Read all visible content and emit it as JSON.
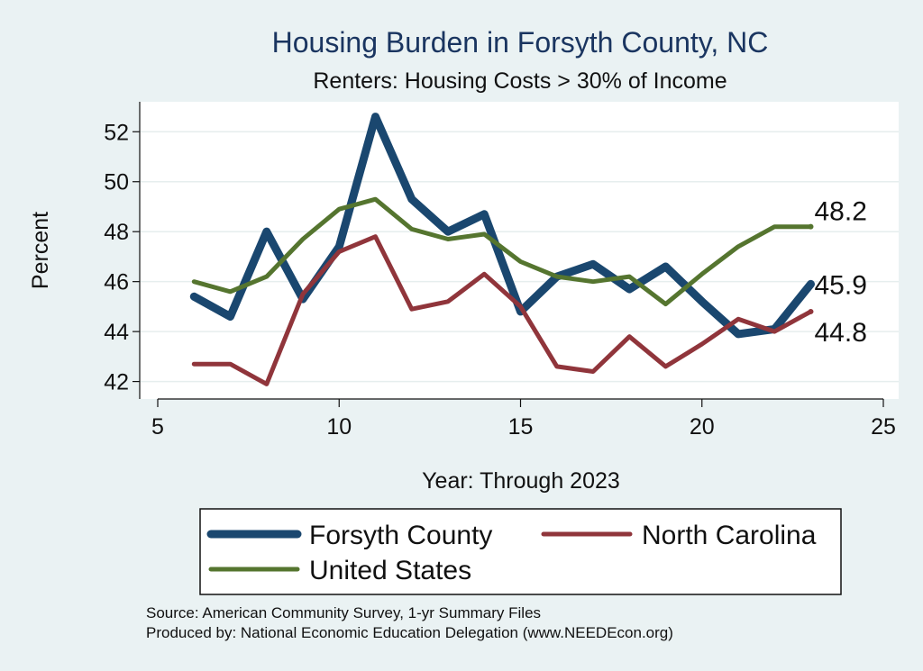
{
  "chart_data": {
    "type": "line",
    "title": "Housing Burden in Forsyth County, NC",
    "subtitle": "Renters: Housing Costs > 30% of Income",
    "xlabel": "Year: Through 2023",
    "ylabel": "Percent",
    "xlim": [
      5,
      25
    ],
    "ylim": [
      41.3,
      53.2
    ],
    "x_ticks": [
      5,
      10,
      15,
      20,
      25
    ],
    "y_ticks": [
      42,
      44,
      46,
      48,
      50,
      52
    ],
    "grid": true,
    "legend_position": "bottom",
    "series": [
      {
        "name": "Forsyth County",
        "color": "#1a476f",
        "x": [
          6,
          7,
          8,
          9,
          10,
          11,
          12,
          13,
          14,
          15,
          16,
          17,
          18,
          19,
          20,
          21,
          22,
          23
        ],
        "values": [
          45.4,
          44.6,
          48.0,
          45.3,
          47.4,
          52.6,
          49.3,
          48.0,
          48.7,
          44.8,
          46.2,
          46.7,
          45.7,
          46.6,
          45.2,
          43.9,
          44.1,
          45.9
        ],
        "end_label": "45.9"
      },
      {
        "name": "North Carolina",
        "color": "#90353b",
        "x": [
          6,
          7,
          8,
          9,
          10,
          11,
          12,
          13,
          14,
          15,
          16,
          17,
          18,
          19,
          20,
          21,
          22,
          23
        ],
        "values": [
          42.7,
          42.7,
          41.9,
          45.5,
          47.2,
          47.8,
          44.9,
          45.2,
          46.3,
          45.0,
          42.6,
          42.4,
          43.8,
          42.6,
          43.5,
          44.5,
          44.0,
          44.8
        ],
        "end_label": "44.8"
      },
      {
        "name": "United States",
        "color": "#55752f",
        "x": [
          6,
          7,
          8,
          9,
          10,
          11,
          12,
          13,
          14,
          15,
          16,
          17,
          18,
          19,
          20,
          21,
          22,
          23
        ],
        "values": [
          46.0,
          45.6,
          46.2,
          47.7,
          48.9,
          49.3,
          48.1,
          47.7,
          47.9,
          46.8,
          46.2,
          46.0,
          46.2,
          45.1,
          46.3,
          47.4,
          48.2,
          48.2
        ],
        "end_label": "48.2"
      }
    ],
    "source_lines": [
      "Source: American Community Survey, 1-yr Summary Files",
      "Produced by: National Economic Education Delegation (www.NEEDEcon.org)"
    ]
  }
}
